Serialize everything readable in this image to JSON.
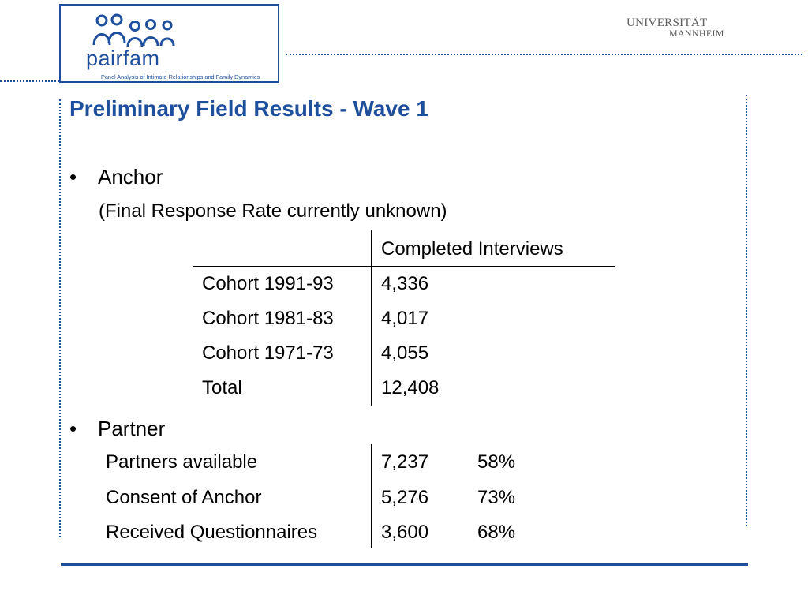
{
  "logo": {
    "word": "pairfam",
    "tagline": "Panel Analysis of Intimate Relationships and Family Dynamics"
  },
  "university": {
    "line1": "UNIVERSITÄT",
    "line2": "MANNHEIM"
  },
  "colors": {
    "accent": "#1e4f9c",
    "text": "#000000",
    "uni_gray": "#5c5c5c"
  },
  "slide": {
    "title": "Preliminary Field Results - Wave 1",
    "bullet_glyph": "•",
    "anchor": {
      "label": "Anchor",
      "note": "(Final Response Rate currently unknown)",
      "table": {
        "header": "Completed Interviews",
        "rows": [
          {
            "label": "Cohort 1991-93",
            "value": "4,336"
          },
          {
            "label": "Cohort 1981-83",
            "value": "4,017"
          },
          {
            "label": "Cohort 1971-73",
            "value": "4,055"
          },
          {
            "label": "Total",
            "value": "12,408"
          }
        ]
      }
    },
    "partner": {
      "label": "Partner",
      "rows": [
        {
          "label": "Partners available",
          "value": "7,237",
          "pct": "58%"
        },
        {
          "label": "Consent of Anchor",
          "value": "5,276",
          "pct": "73%"
        },
        {
          "label": "Received Questionnaires",
          "value": "3,600",
          "pct": "68%"
        }
      ]
    }
  }
}
